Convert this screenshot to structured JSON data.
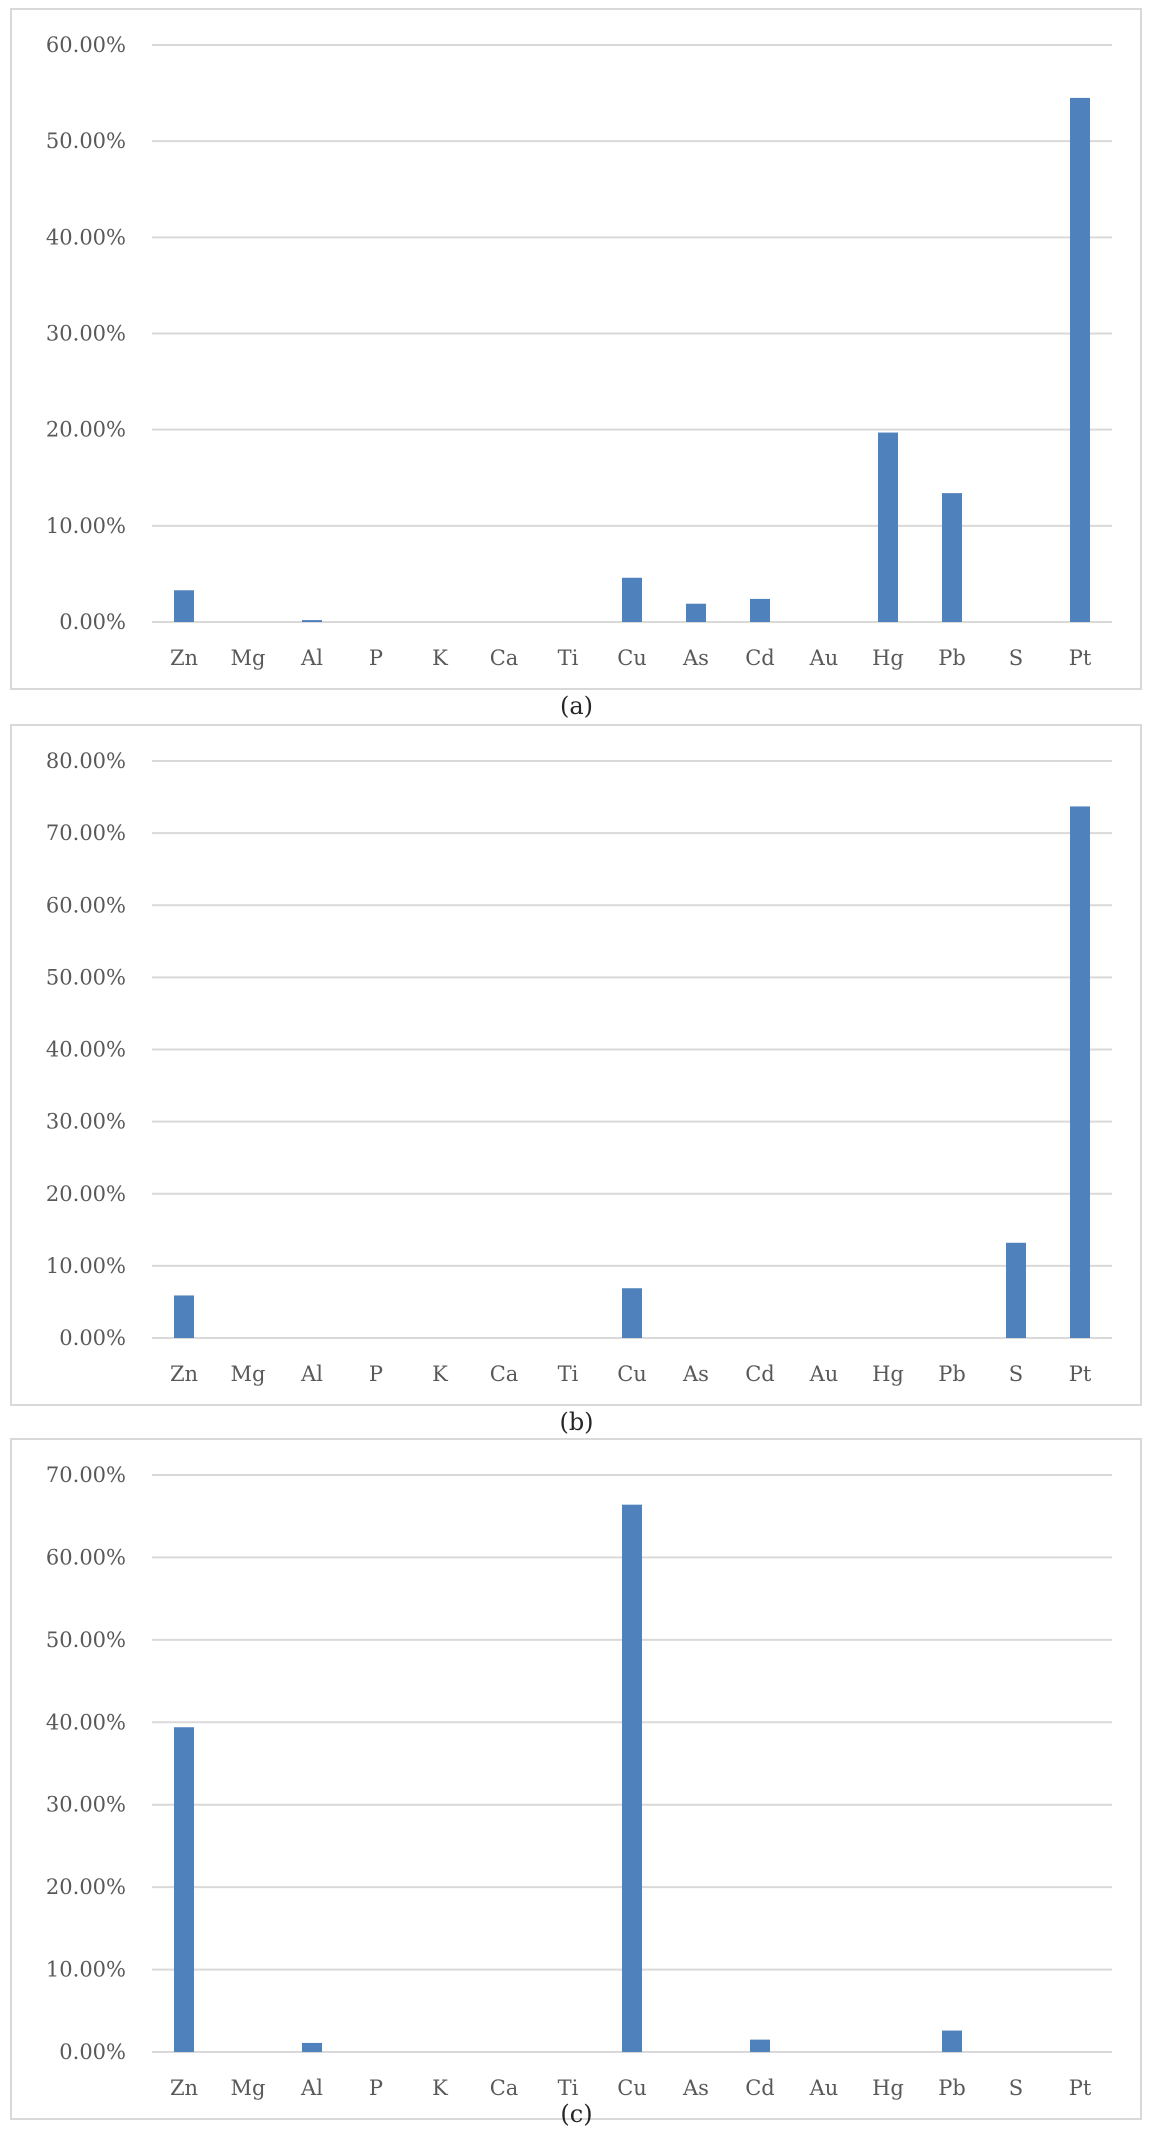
{
  "captions": [
    "(a)",
    "(b)",
    "(c)"
  ],
  "chart_data": [
    {
      "type": "bar",
      "categories": [
        "Zn",
        "Mg",
        "Al",
        "P",
        "K",
        "Ca",
        "Ti",
        "Cu",
        "As",
        "Cd",
        "Au",
        "Hg",
        "Pb",
        "S",
        "Pt"
      ],
      "values": [
        3.3,
        0,
        0.2,
        0,
        0,
        0,
        0,
        4.6,
        1.9,
        2.4,
        0,
        19.7,
        13.4,
        0,
        54.5
      ],
      "yticks": [
        "0.00%",
        "10.00%",
        "20.00%",
        "30.00%",
        "40.00%",
        "50.00%",
        "60.00%"
      ],
      "ylim": [
        0,
        60
      ],
      "color": "#4f81bd",
      "grid": true
    },
    {
      "type": "bar",
      "categories": [
        "Zn",
        "Mg",
        "Al",
        "P",
        "K",
        "Ca",
        "Ti",
        "Cu",
        "As",
        "Cd",
        "Au",
        "Hg",
        "Pb",
        "S",
        "Pt"
      ],
      "values": [
        5.9,
        0,
        0,
        0,
        0,
        0,
        0,
        6.9,
        0,
        0,
        0,
        0,
        0,
        13.2,
        73.7
      ],
      "yticks": [
        "0.00%",
        "10.00%",
        "20.00%",
        "30.00%",
        "40.00%",
        "50.00%",
        "60.00%",
        "70.00%",
        "80.00%"
      ],
      "ylim": [
        0,
        80
      ],
      "color": "#4f81bd",
      "grid": true
    },
    {
      "type": "bar",
      "categories": [
        "Zn",
        "Mg",
        "Al",
        "P",
        "K",
        "Ca",
        "Ti",
        "Cu",
        "As",
        "Cd",
        "Au",
        "Hg",
        "Pb",
        "S",
        "Pt"
      ],
      "values": [
        39.4,
        0,
        1.1,
        0,
        0,
        0,
        0,
        66.4,
        0,
        1.5,
        0,
        0,
        2.6,
        0,
        0
      ],
      "yticks": [
        "0.00%",
        "10.00%",
        "20.00%",
        "30.00%",
        "40.00%",
        "50.00%",
        "60.00%",
        "70.00%"
      ],
      "ylim": [
        0,
        70
      ],
      "color": "#4f81bd",
      "grid": true
    }
  ]
}
